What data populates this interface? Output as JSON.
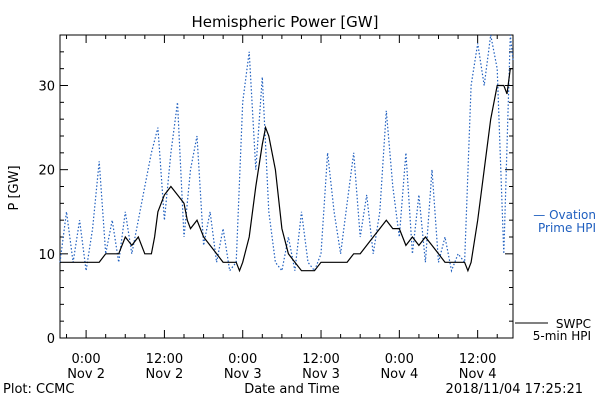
{
  "chart_data": {
    "type": "line",
    "title": "Hemispheric Power [GW]",
    "xlabel": "Date and Time",
    "ylabel": "P [GW]",
    "ylim": [
      0,
      36
    ],
    "yticks": [
      0,
      10,
      20,
      30
    ],
    "xlim": [
      "2018-11-01T20:00",
      "2018-11-04T17:25"
    ],
    "xticks": [
      {
        "time": "2018-11-02T00:00",
        "label1": "0:00",
        "label2": "Nov 2"
      },
      {
        "time": "2018-11-02T12:00",
        "label1": "12:00",
        "label2": "Nov 2"
      },
      {
        "time": "2018-11-03T00:00",
        "label1": "0:00",
        "label2": "Nov 3"
      },
      {
        "time": "2018-11-03T12:00",
        "label1": "12:00",
        "label2": "Nov 3"
      },
      {
        "time": "2018-11-04T00:00",
        "label1": "0:00",
        "label2": "Nov 4"
      },
      {
        "time": "2018-11-04T12:00",
        "label1": "12:00",
        "label2": "Nov 4"
      }
    ],
    "grid": false,
    "legend_position": "right",
    "series": [
      {
        "name": "SWPC 5-min HPI",
        "legend_line1": "SWPC",
        "legend_line2": "5-min HPI",
        "color": "#000000",
        "style": "solid",
        "points": [
          [
            "2018-11-01T20:00",
            9
          ],
          [
            "2018-11-02T00:00",
            9
          ],
          [
            "2018-11-02T02:00",
            9
          ],
          [
            "2018-11-02T03:00",
            10
          ],
          [
            "2018-11-02T05:00",
            10
          ],
          [
            "2018-11-02T06:00",
            12
          ],
          [
            "2018-11-02T07:00",
            11
          ],
          [
            "2018-11-02T08:00",
            12
          ],
          [
            "2018-11-02T09:00",
            10
          ],
          [
            "2018-11-02T10:00",
            10
          ],
          [
            "2018-11-02T10:30",
            12
          ],
          [
            "2018-11-02T11:00",
            15
          ],
          [
            "2018-11-02T12:00",
            17
          ],
          [
            "2018-11-02T13:00",
            18
          ],
          [
            "2018-11-02T14:00",
            17
          ],
          [
            "2018-11-02T15:00",
            16
          ],
          [
            "2018-11-02T15:30",
            14
          ],
          [
            "2018-11-02T16:00",
            13
          ],
          [
            "2018-11-02T17:00",
            14
          ],
          [
            "2018-11-02T18:00",
            12
          ],
          [
            "2018-11-02T19:00",
            11
          ],
          [
            "2018-11-02T20:00",
            10
          ],
          [
            "2018-11-02T21:00",
            9
          ],
          [
            "2018-11-02T23:00",
            9
          ],
          [
            "2018-11-02T23:30",
            8
          ],
          [
            "2018-11-03T00:00",
            9
          ],
          [
            "2018-11-03T01:00",
            12
          ],
          [
            "2018-11-03T02:00",
            18
          ],
          [
            "2018-11-03T03:00",
            23
          ],
          [
            "2018-11-03T03:30",
            25
          ],
          [
            "2018-11-03T04:00",
            24
          ],
          [
            "2018-11-03T05:00",
            20
          ],
          [
            "2018-11-03T06:00",
            13
          ],
          [
            "2018-11-03T07:00",
            10
          ],
          [
            "2018-11-03T08:00",
            9
          ],
          [
            "2018-11-03T09:00",
            8
          ],
          [
            "2018-11-03T11:00",
            8
          ],
          [
            "2018-11-03T12:00",
            9
          ],
          [
            "2018-11-03T14:00",
            9
          ],
          [
            "2018-11-03T16:00",
            9
          ],
          [
            "2018-11-03T17:00",
            10
          ],
          [
            "2018-11-03T18:00",
            10
          ],
          [
            "2018-11-03T19:00",
            11
          ],
          [
            "2018-11-03T20:00",
            12
          ],
          [
            "2018-11-03T21:00",
            13
          ],
          [
            "2018-11-03T22:00",
            14
          ],
          [
            "2018-11-03T23:00",
            13
          ],
          [
            "2018-11-04T00:00",
            13
          ],
          [
            "2018-11-04T01:00",
            11
          ],
          [
            "2018-11-04T02:00",
            12
          ],
          [
            "2018-11-04T03:00",
            11
          ],
          [
            "2018-11-04T04:00",
            12
          ],
          [
            "2018-11-04T05:00",
            11
          ],
          [
            "2018-11-04T06:00",
            10
          ],
          [
            "2018-11-04T07:00",
            9
          ],
          [
            "2018-11-04T08:00",
            9
          ],
          [
            "2018-11-04T10:00",
            9
          ],
          [
            "2018-11-04T10:30",
            8
          ],
          [
            "2018-11-04T11:00",
            9
          ],
          [
            "2018-11-04T12:00",
            14
          ],
          [
            "2018-11-04T13:00",
            20
          ],
          [
            "2018-11-04T14:00",
            26
          ],
          [
            "2018-11-04T15:00",
            30
          ],
          [
            "2018-11-04T16:00",
            30
          ],
          [
            "2018-11-04T16:30",
            29
          ],
          [
            "2018-11-04T17:00",
            32
          ],
          [
            "2018-11-04T17:25",
            32
          ]
        ]
      },
      {
        "name": "Ovation Prime HPI",
        "legend_line1": "— Ovation",
        "legend_line2": "Prime HPI",
        "color": "#1f5fbf",
        "style": "dotted",
        "points": [
          [
            "2018-11-01T20:00",
            9
          ],
          [
            "2018-11-01T21:00",
            15
          ],
          [
            "2018-11-01T22:00",
            9
          ],
          [
            "2018-11-01T23:00",
            14
          ],
          [
            "2018-11-02T00:00",
            8
          ],
          [
            "2018-11-02T01:00",
            13
          ],
          [
            "2018-11-02T02:00",
            21
          ],
          [
            "2018-11-02T03:00",
            10
          ],
          [
            "2018-11-02T04:00",
            14
          ],
          [
            "2018-11-02T05:00",
            9
          ],
          [
            "2018-11-02T06:00",
            15
          ],
          [
            "2018-11-02T07:00",
            10
          ],
          [
            "2018-11-02T08:00",
            14
          ],
          [
            "2018-11-02T09:00",
            18
          ],
          [
            "2018-11-02T10:00",
            22
          ],
          [
            "2018-11-02T11:00",
            25
          ],
          [
            "2018-11-02T12:00",
            14
          ],
          [
            "2018-11-02T13:00",
            22
          ],
          [
            "2018-11-02T14:00",
            28
          ],
          [
            "2018-11-02T15:00",
            12
          ],
          [
            "2018-11-02T16:00",
            20
          ],
          [
            "2018-11-02T17:00",
            24
          ],
          [
            "2018-11-02T18:00",
            11
          ],
          [
            "2018-11-02T19:00",
            15
          ],
          [
            "2018-11-02T20:00",
            9
          ],
          [
            "2018-11-02T21:00",
            13
          ],
          [
            "2018-11-02T22:00",
            8
          ],
          [
            "2018-11-02T23:00",
            9
          ],
          [
            "2018-11-03T00:00",
            28
          ],
          [
            "2018-11-03T01:00",
            34
          ],
          [
            "2018-11-03T02:00",
            20
          ],
          [
            "2018-11-03T03:00",
            31
          ],
          [
            "2018-11-03T04:00",
            15
          ],
          [
            "2018-11-03T05:00",
            9
          ],
          [
            "2018-11-03T06:00",
            8
          ],
          [
            "2018-11-03T07:00",
            12
          ],
          [
            "2018-11-03T08:00",
            8
          ],
          [
            "2018-11-03T09:00",
            15
          ],
          [
            "2018-11-03T10:00",
            9
          ],
          [
            "2018-11-03T11:00",
            8
          ],
          [
            "2018-11-03T12:00",
            10
          ],
          [
            "2018-11-03T13:00",
            22
          ],
          [
            "2018-11-03T14:00",
            15
          ],
          [
            "2018-11-03T15:00",
            10
          ],
          [
            "2018-11-03T16:00",
            16
          ],
          [
            "2018-11-03T17:00",
            22
          ],
          [
            "2018-11-03T18:00",
            12
          ],
          [
            "2018-11-03T19:00",
            17
          ],
          [
            "2018-11-03T20:00",
            10
          ],
          [
            "2018-11-03T21:00",
            15
          ],
          [
            "2018-11-03T22:00",
            27
          ],
          [
            "2018-11-03T23:00",
            18
          ],
          [
            "2018-11-04T00:00",
            12
          ],
          [
            "2018-11-04T01:00",
            22
          ],
          [
            "2018-11-04T02:00",
            10
          ],
          [
            "2018-11-04T03:00",
            17
          ],
          [
            "2018-11-04T04:00",
            9
          ],
          [
            "2018-11-04T05:00",
            20
          ],
          [
            "2018-11-04T06:00",
            9
          ],
          [
            "2018-11-04T07:00",
            12
          ],
          [
            "2018-11-04T08:00",
            8
          ],
          [
            "2018-11-04T09:00",
            10
          ],
          [
            "2018-11-04T10:00",
            9
          ],
          [
            "2018-11-04T11:00",
            30
          ],
          [
            "2018-11-04T12:00",
            35
          ],
          [
            "2018-11-04T13:00",
            30
          ],
          [
            "2018-11-04T14:00",
            36
          ],
          [
            "2018-11-04T15:00",
            32
          ],
          [
            "2018-11-04T16:00",
            10
          ],
          [
            "2018-11-04T17:00",
            36
          ],
          [
            "2018-11-04T17:25",
            33
          ]
        ]
      }
    ]
  },
  "footer": {
    "left": "Plot: CCMC",
    "right": "2018/11/04 17:25:21"
  }
}
